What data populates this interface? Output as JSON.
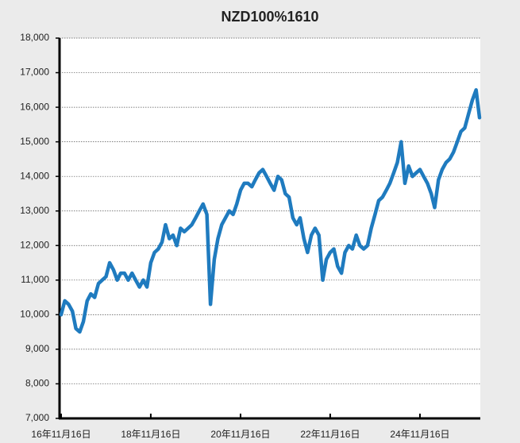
{
  "chart_data": {
    "type": "line",
    "title": "NZD100%1610",
    "x": [
      "2016-11-16",
      "2016-12-16",
      "2017-01-16",
      "2017-02-16",
      "2017-03-16",
      "2017-04-16",
      "2017-05-16",
      "2017-06-16",
      "2017-07-16",
      "2017-08-16",
      "2017-09-16",
      "2017-10-16",
      "2017-11-16",
      "2017-12-16",
      "2018-01-16",
      "2018-02-16",
      "2018-03-16",
      "2018-04-16",
      "2018-05-16",
      "2018-06-16",
      "2018-07-16",
      "2018-08-16",
      "2018-09-16",
      "2018-10-16",
      "2018-11-16",
      "2018-12-16",
      "2019-01-16",
      "2019-02-16",
      "2019-03-16",
      "2019-04-16",
      "2019-05-16",
      "2019-06-16",
      "2019-07-16",
      "2019-08-16",
      "2019-09-16",
      "2019-10-16",
      "2019-11-16",
      "2019-12-16",
      "2020-01-16",
      "2020-02-16",
      "2020-03-16",
      "2020-04-16",
      "2020-05-16",
      "2020-06-16",
      "2020-07-16",
      "2020-08-16",
      "2020-09-16",
      "2020-10-16",
      "2020-11-16",
      "2020-12-16",
      "2021-01-16",
      "2021-02-16",
      "2021-03-16",
      "2021-04-16",
      "2021-05-16",
      "2021-06-16",
      "2021-07-16",
      "2021-08-16",
      "2021-09-16",
      "2021-10-16",
      "2021-11-16",
      "2021-12-16",
      "2022-01-16",
      "2022-02-16",
      "2022-03-16",
      "2022-04-16",
      "2022-05-16",
      "2022-06-16",
      "2022-07-16",
      "2022-08-16",
      "2022-09-16",
      "2022-10-16",
      "2022-11-16",
      "2022-12-16",
      "2023-01-16",
      "2023-02-16",
      "2023-03-16",
      "2023-04-16",
      "2023-05-16",
      "2023-06-16",
      "2023-07-16",
      "2023-08-16",
      "2023-09-16",
      "2023-10-16",
      "2023-11-16",
      "2023-12-16",
      "2024-01-16",
      "2024-02-16",
      "2024-03-16",
      "2024-04-16",
      "2024-05-16",
      "2024-06-16",
      "2024-07-16",
      "2024-08-16",
      "2024-09-16",
      "2024-10-16",
      "2024-11-16",
      "2024-12-16",
      "2025-01-16",
      "2025-02-16",
      "2025-03-16",
      "2025-04-16",
      "2025-05-16",
      "2025-06-16",
      "2025-07-16",
      "2025-08-16",
      "2025-09-16",
      "2025-10-16",
      "2025-11-16",
      "2025-12-16",
      "2026-01-16",
      "2026-02-16",
      "2026-03-16"
    ],
    "series": [
      {
        "color": "#1f7bbf",
        "values": [
          10000,
          10400,
          10300,
          10100,
          9600,
          9500,
          9800,
          10400,
          10600,
          10500,
          10900,
          11000,
          11100,
          11500,
          11300,
          11000,
          11200,
          11200,
          11000,
          11200,
          11000,
          10800,
          11000,
          10800,
          11500,
          11800,
          11900,
          12100,
          12600,
          12200,
          12300,
          12000,
          12500,
          12400,
          12500,
          12600,
          12800,
          13000,
          13200,
          12900,
          10300,
          11600,
          12200,
          12600,
          12800,
          13000,
          12900,
          13200,
          13600,
          13800,
          13800,
          13700,
          13900,
          14100,
          14200,
          14000,
          13800,
          13600,
          14000,
          13900,
          13500,
          13400,
          12800,
          12600,
          12800,
          12200,
          11800,
          12300,
          12500,
          12300,
          11000,
          11600,
          11800,
          11900,
          11400,
          11200,
          11800,
          12000,
          11900,
          12300,
          12000,
          11900,
          12000,
          12500,
          12900,
          13300,
          13400,
          13600,
          13800,
          14100,
          14400,
          15000,
          13800,
          14300,
          14000,
          14100,
          14200,
          14000,
          13800,
          13500,
          13100,
          13900,
          14200,
          14400,
          14500,
          14700,
          15000,
          15300,
          15400,
          15800,
          16200,
          16500,
          15700
        ]
      }
    ],
    "xlim": [
      "2016-11-16",
      "2026-03-16"
    ],
    "xticks": [
      {
        "value": "2016-11-16",
        "label": "16年11月16日"
      },
      {
        "value": "2018-11-16",
        "label": "18年11月16日"
      },
      {
        "value": "2020-11-16",
        "label": "20年11月16日"
      },
      {
        "value": "2022-11-16",
        "label": "22年11月16日"
      },
      {
        "value": "2024-11-16",
        "label": "24年11月16日"
      }
    ],
    "ylim": [
      7000,
      18000
    ],
    "yticks": [
      {
        "value": 7000,
        "label": "7,000"
      },
      {
        "value": 8000,
        "label": "8,000"
      },
      {
        "value": 9000,
        "label": "9,000"
      },
      {
        "value": 10000,
        "label": "10,000"
      },
      {
        "value": 11000,
        "label": "11,000"
      },
      {
        "value": 12000,
        "label": "12,000"
      },
      {
        "value": 13000,
        "label": "13,000"
      },
      {
        "value": 14000,
        "label": "14,000"
      },
      {
        "value": 15000,
        "label": "15,000"
      },
      {
        "value": 16000,
        "label": "16,000"
      },
      {
        "value": 17000,
        "label": "17,000"
      },
      {
        "value": 18000,
        "label": "18,000"
      }
    ],
    "grid": true
  }
}
